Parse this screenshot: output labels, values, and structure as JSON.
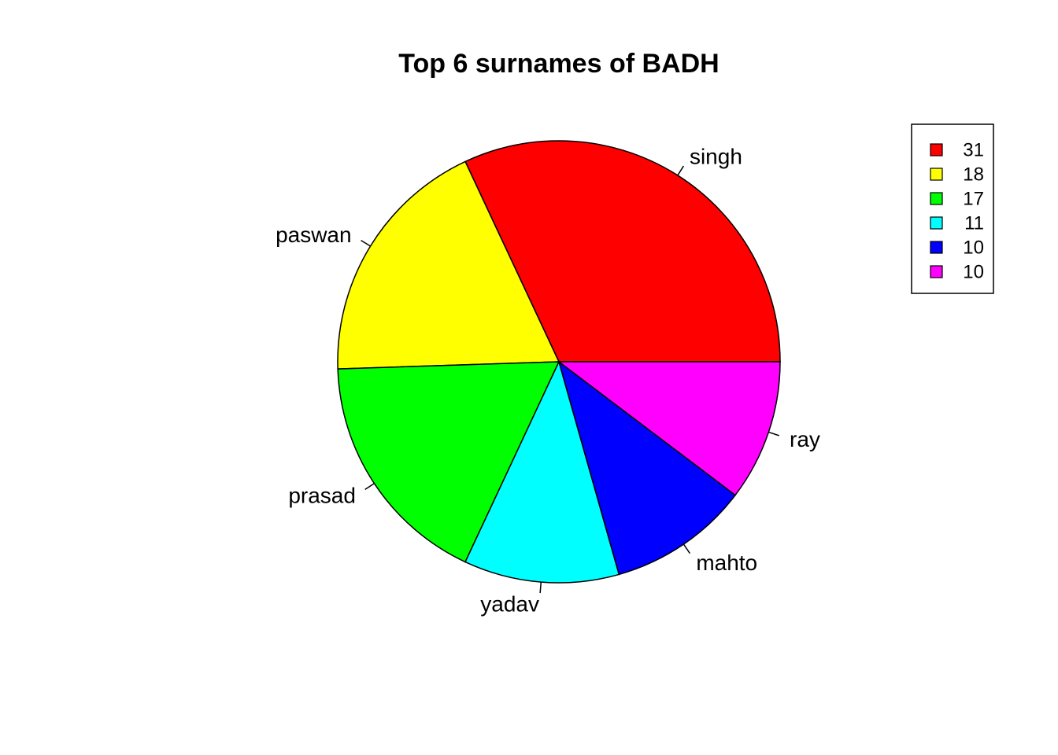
{
  "chart_data": {
    "type": "pie",
    "title": "Top 6 surnames of BADH",
    "direction": "counterclockwise",
    "start": "3 o'clock",
    "slices": [
      {
        "label": "singh",
        "value": 31,
        "color": "#ff0000"
      },
      {
        "label": "paswan",
        "value": 18,
        "color": "#ffff00"
      },
      {
        "label": "prasad",
        "value": 17,
        "color": "#00ff00"
      },
      {
        "label": "yadav",
        "value": 11,
        "color": "#00ffff"
      },
      {
        "label": "mahto",
        "value": 10,
        "color": "#0000ff"
      },
      {
        "label": "ray",
        "value": 10,
        "color": "#ff00ff"
      }
    ],
    "legend": {
      "placement": "top-right",
      "entries": [
        "31",
        "18",
        "17",
        "11",
        "10",
        "10"
      ]
    }
  }
}
